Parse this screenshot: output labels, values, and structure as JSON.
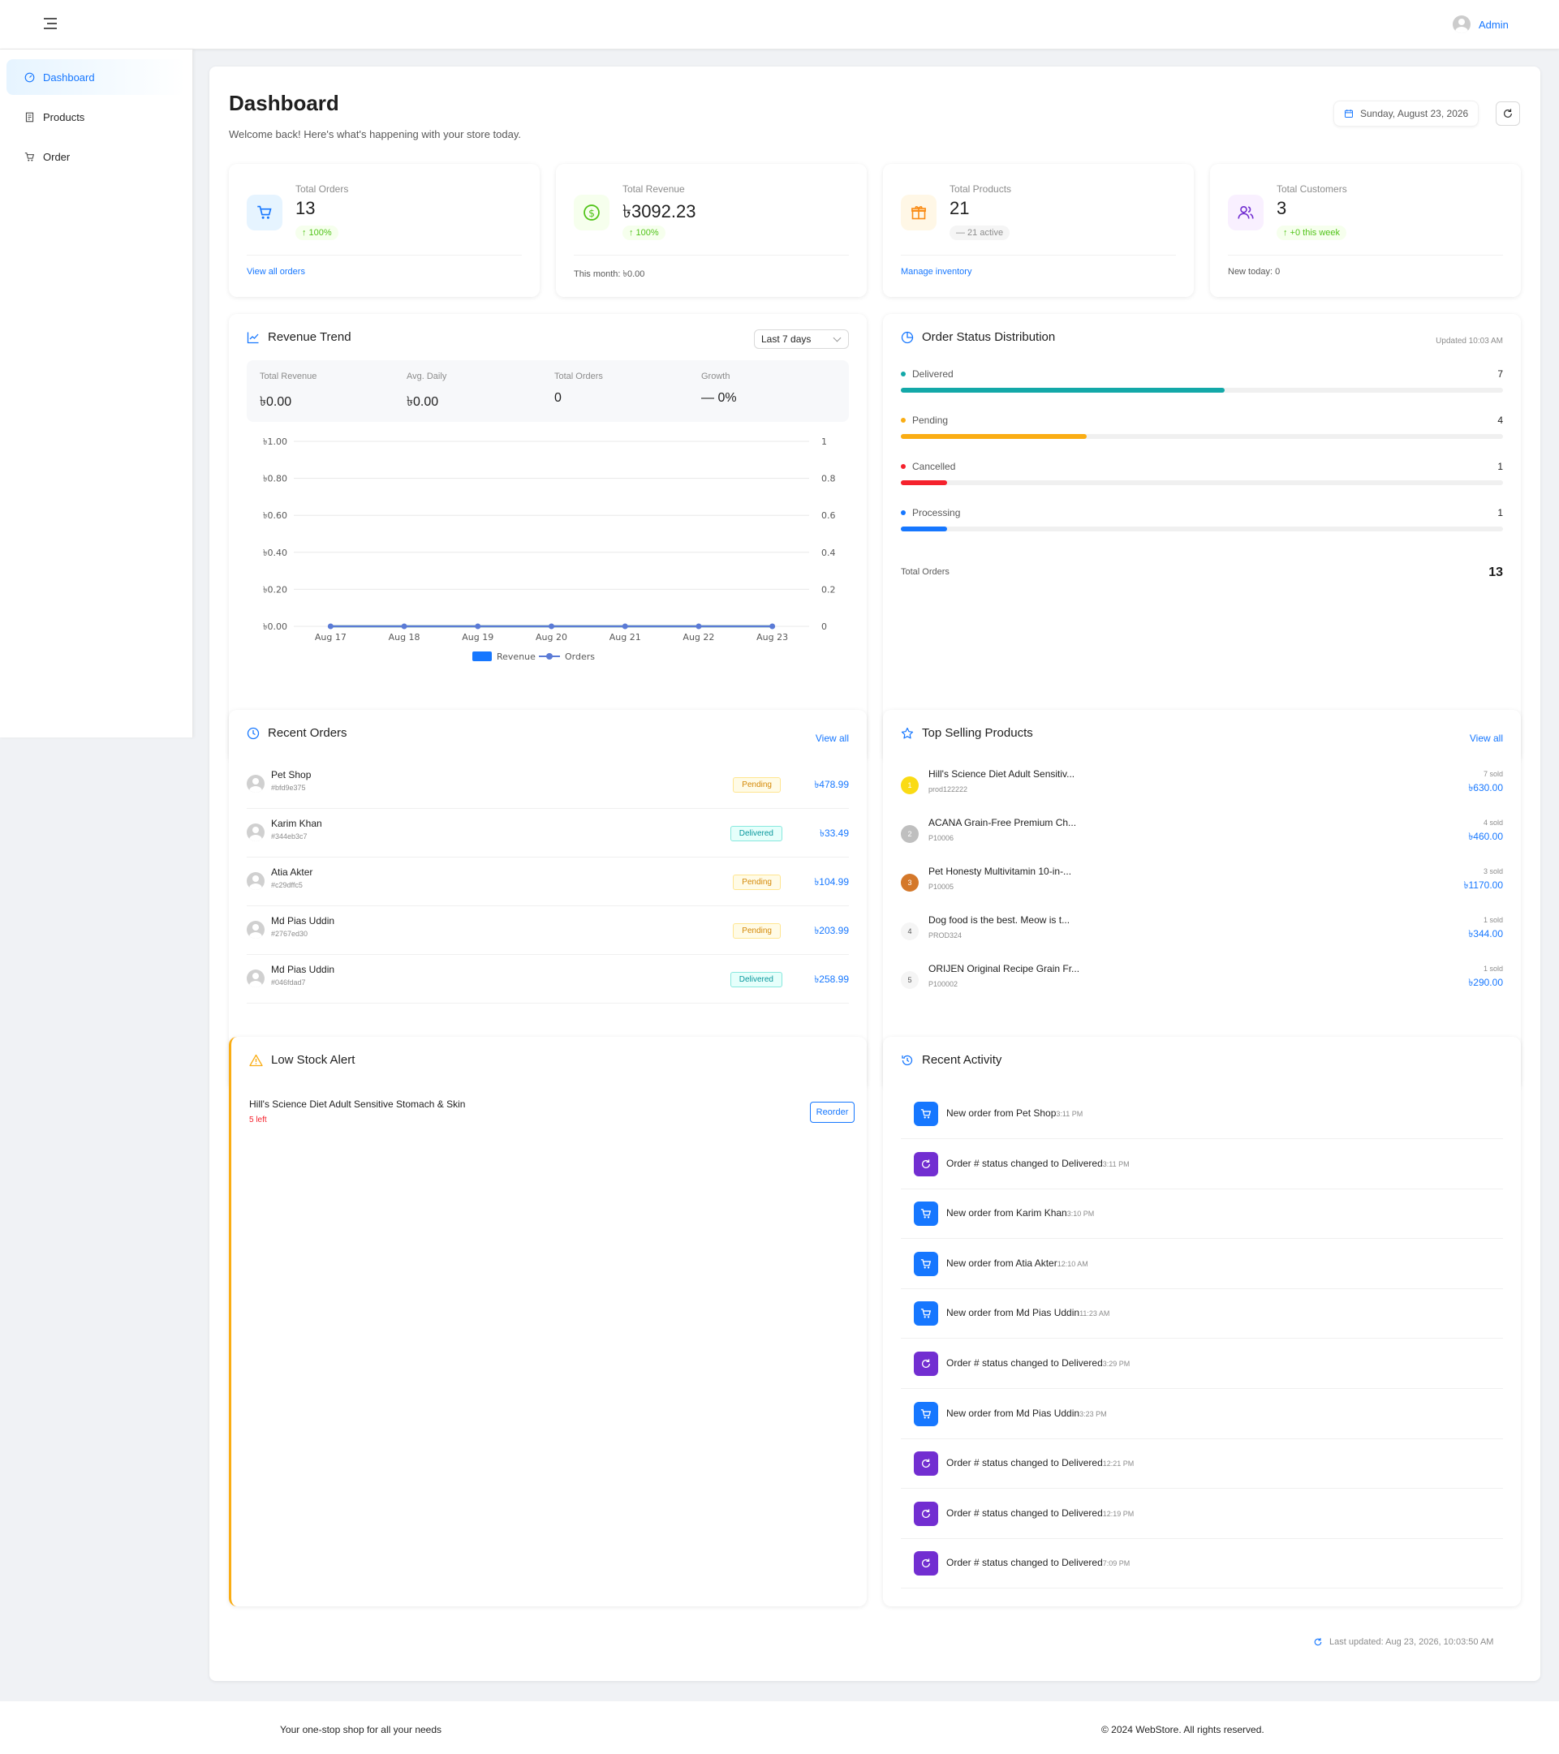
{
  "topbar": {
    "user_label": "Admin"
  },
  "sidebar": {
    "items": [
      {
        "label": "Dashboard",
        "icon": "dashboard-icon",
        "active": true
      },
      {
        "label": "Products",
        "icon": "products-icon"
      },
      {
        "label": "Order",
        "icon": "cart-icon"
      }
    ]
  },
  "header": {
    "title": "Dashboard",
    "subtitle": "Welcome back! Here's what's happening with your store today.",
    "date": "Sunday, August 23, 2026"
  },
  "stats": [
    {
      "label": "Total Orders",
      "value": "13",
      "badge": "↑ 100%",
      "footer": "View all orders",
      "color": "#1677ff",
      "bg": "#e6f4ff",
      "icon": "cart-icon"
    },
    {
      "label": "Total Revenue",
      "value": "৳3092.23",
      "badge": "↑ 100%",
      "footer": "This month: ৳0.00",
      "color": "#52c41a",
      "bg": "#f6ffed",
      "icon": "dollar-icon"
    },
    {
      "label": "Total Products",
      "value": "21",
      "badge": "— 21 active",
      "footer": "Manage inventory",
      "color": "#fa8c16",
      "bg": "#fff7e6",
      "icon": "gift-icon"
    },
    {
      "label": "Total Customers",
      "value": "3",
      "badge": "↑ +0 this week",
      "footer": "New today: 0",
      "color": "#722ed1",
      "bg": "#f9f0ff",
      "icon": "users-icon"
    }
  ],
  "revenue_trend": {
    "title": "Revenue Trend",
    "range": "Last 7 days",
    "summary": [
      {
        "label": "Total Revenue",
        "value": "৳0.00"
      },
      {
        "label": "Avg. Daily",
        "value": "৳0.00"
      },
      {
        "label": "Total Orders",
        "value": "0"
      },
      {
        "label": "Growth",
        "value": "— 0%"
      }
    ],
    "legend": {
      "revenue": "Revenue",
      "orders": "Orders"
    }
  },
  "chart_data": {
    "type": "line",
    "categories": [
      "Aug 17",
      "Aug 18",
      "Aug 19",
      "Aug 20",
      "Aug 21",
      "Aug 22",
      "Aug 23"
    ],
    "series": [
      {
        "name": "Revenue",
        "values": [
          0,
          0,
          0,
          0,
          0,
          0,
          0
        ],
        "color": "#52c41a"
      },
      {
        "name": "Orders",
        "values": [
          0,
          0,
          0,
          0,
          0,
          0,
          0
        ],
        "color": "#5b7bd6"
      }
    ],
    "y_left_ticks": [
      "৳0.00",
      "৳0.20",
      "৳0.40",
      "৳0.60",
      "৳0.80",
      "৳1.00"
    ],
    "y_right_ticks": [
      "0",
      "0.2",
      "0.4",
      "0.6",
      "0.8",
      "1"
    ],
    "ylim": [
      0,
      1
    ],
    "grid": true,
    "legend": "bottom"
  },
  "order_status": {
    "title": "Order Status Distribution",
    "updated": "Updated 10:03 AM",
    "items": [
      {
        "label": "Delivered",
        "count": "7",
        "fraction": 0.538,
        "color": "#13a8a8"
      },
      {
        "label": "Pending",
        "count": "4",
        "fraction": 0.308,
        "color": "#faad14"
      },
      {
        "label": "Cancelled",
        "count": "1",
        "fraction": 0.077,
        "color": "#f5222d"
      },
      {
        "label": "Processing",
        "count": "1",
        "fraction": 0.077,
        "color": "#1677ff"
      }
    ],
    "total_label": "Total Orders",
    "total": "13"
  },
  "recent_orders": {
    "title": "Recent Orders",
    "view_all": "View all",
    "rows": [
      {
        "name": "Pet Shop",
        "id": "#bfd9e375",
        "status": "Pending",
        "amount": "৳478.99"
      },
      {
        "name": "Karim Khan",
        "id": "#344eb3c7",
        "status": "Delivered",
        "amount": "৳33.49"
      },
      {
        "name": "Atia Akter",
        "id": "#c29dffc5",
        "status": "Pending",
        "amount": "৳104.99"
      },
      {
        "name": "Md Pias Uddin",
        "id": "#2767ed30",
        "status": "Pending",
        "amount": "৳203.99"
      },
      {
        "name": "Md Pias Uddin",
        "id": "#046fdad7",
        "status": "Delivered",
        "amount": "৳258.99"
      }
    ]
  },
  "top_products": {
    "title": "Top Selling Products",
    "view_all": "View all",
    "rows": [
      {
        "rank": "1",
        "name": "Hill's Science Diet Adult Sensitiv...",
        "code": "prod122222",
        "sold": "7 sold",
        "revenue": "৳630.00",
        "bg": "#fadb14",
        "fg": "#fff"
      },
      {
        "rank": "2",
        "name": "ACANA Grain-Free Premium Ch...",
        "code": "P10006",
        "sold": "4 sold",
        "revenue": "৳460.00",
        "bg": "#bfbfbf",
        "fg": "#fff"
      },
      {
        "rank": "3",
        "name": "Pet Honesty Multivitamin 10-in-...",
        "code": "P10005",
        "sold": "3 sold",
        "revenue": "৳1170.00",
        "bg": "#d4782a",
        "fg": "#fff"
      },
      {
        "rank": "4",
        "name": "Dog food is the best. Meow is t...",
        "code": "PROD324",
        "sold": "1 sold",
        "revenue": "৳344.00",
        "bg": "#f5f5f5",
        "fg": "#595959"
      },
      {
        "rank": "5",
        "name": "ORIJEN Original Recipe Grain Fr...",
        "code": "P100002",
        "sold": "1 sold",
        "revenue": "৳290.00",
        "bg": "#f5f5f5",
        "fg": "#595959"
      }
    ]
  },
  "low_stock": {
    "title": "Low Stock Alert",
    "item": "Hill's Science Diet Adult Sensitive Stomach & Skin",
    "left": "5 left",
    "action": "Reorder"
  },
  "recent_activity": {
    "title": "Recent Activity",
    "rows": [
      {
        "type": "order",
        "text": "New order from Pet Shop",
        "time": "3:11 PM"
      },
      {
        "type": "status",
        "text": "Order # status changed to Delivered",
        "time": "3:11 PM"
      },
      {
        "type": "order",
        "text": "New order from Karim Khan",
        "time": "3:10 PM"
      },
      {
        "type": "order",
        "text": "New order from Atia Akter",
        "time": "12:10 AM"
      },
      {
        "type": "order",
        "text": "New order from Md Pias Uddin",
        "time": "11:23 AM"
      },
      {
        "type": "status",
        "text": "Order # status changed to Delivered",
        "time": "3:29 PM"
      },
      {
        "type": "order",
        "text": "New order from Md Pias Uddin",
        "time": "3:23 PM"
      },
      {
        "type": "status",
        "text": "Order # status changed to Delivered",
        "time": "12:21 PM"
      },
      {
        "type": "status",
        "text": "Order # status changed to Delivered",
        "time": "12:19 PM"
      },
      {
        "type": "status",
        "text": "Order # status changed to Delivered",
        "time": "7:09 PM"
      }
    ]
  },
  "last_updated": "Last updated: Aug 23, 2026, 10:03:50 AM",
  "footer": {
    "tagline": "Your one-stop shop for all your needs",
    "copyright": "© 2024 WebStore. All rights reserved."
  }
}
